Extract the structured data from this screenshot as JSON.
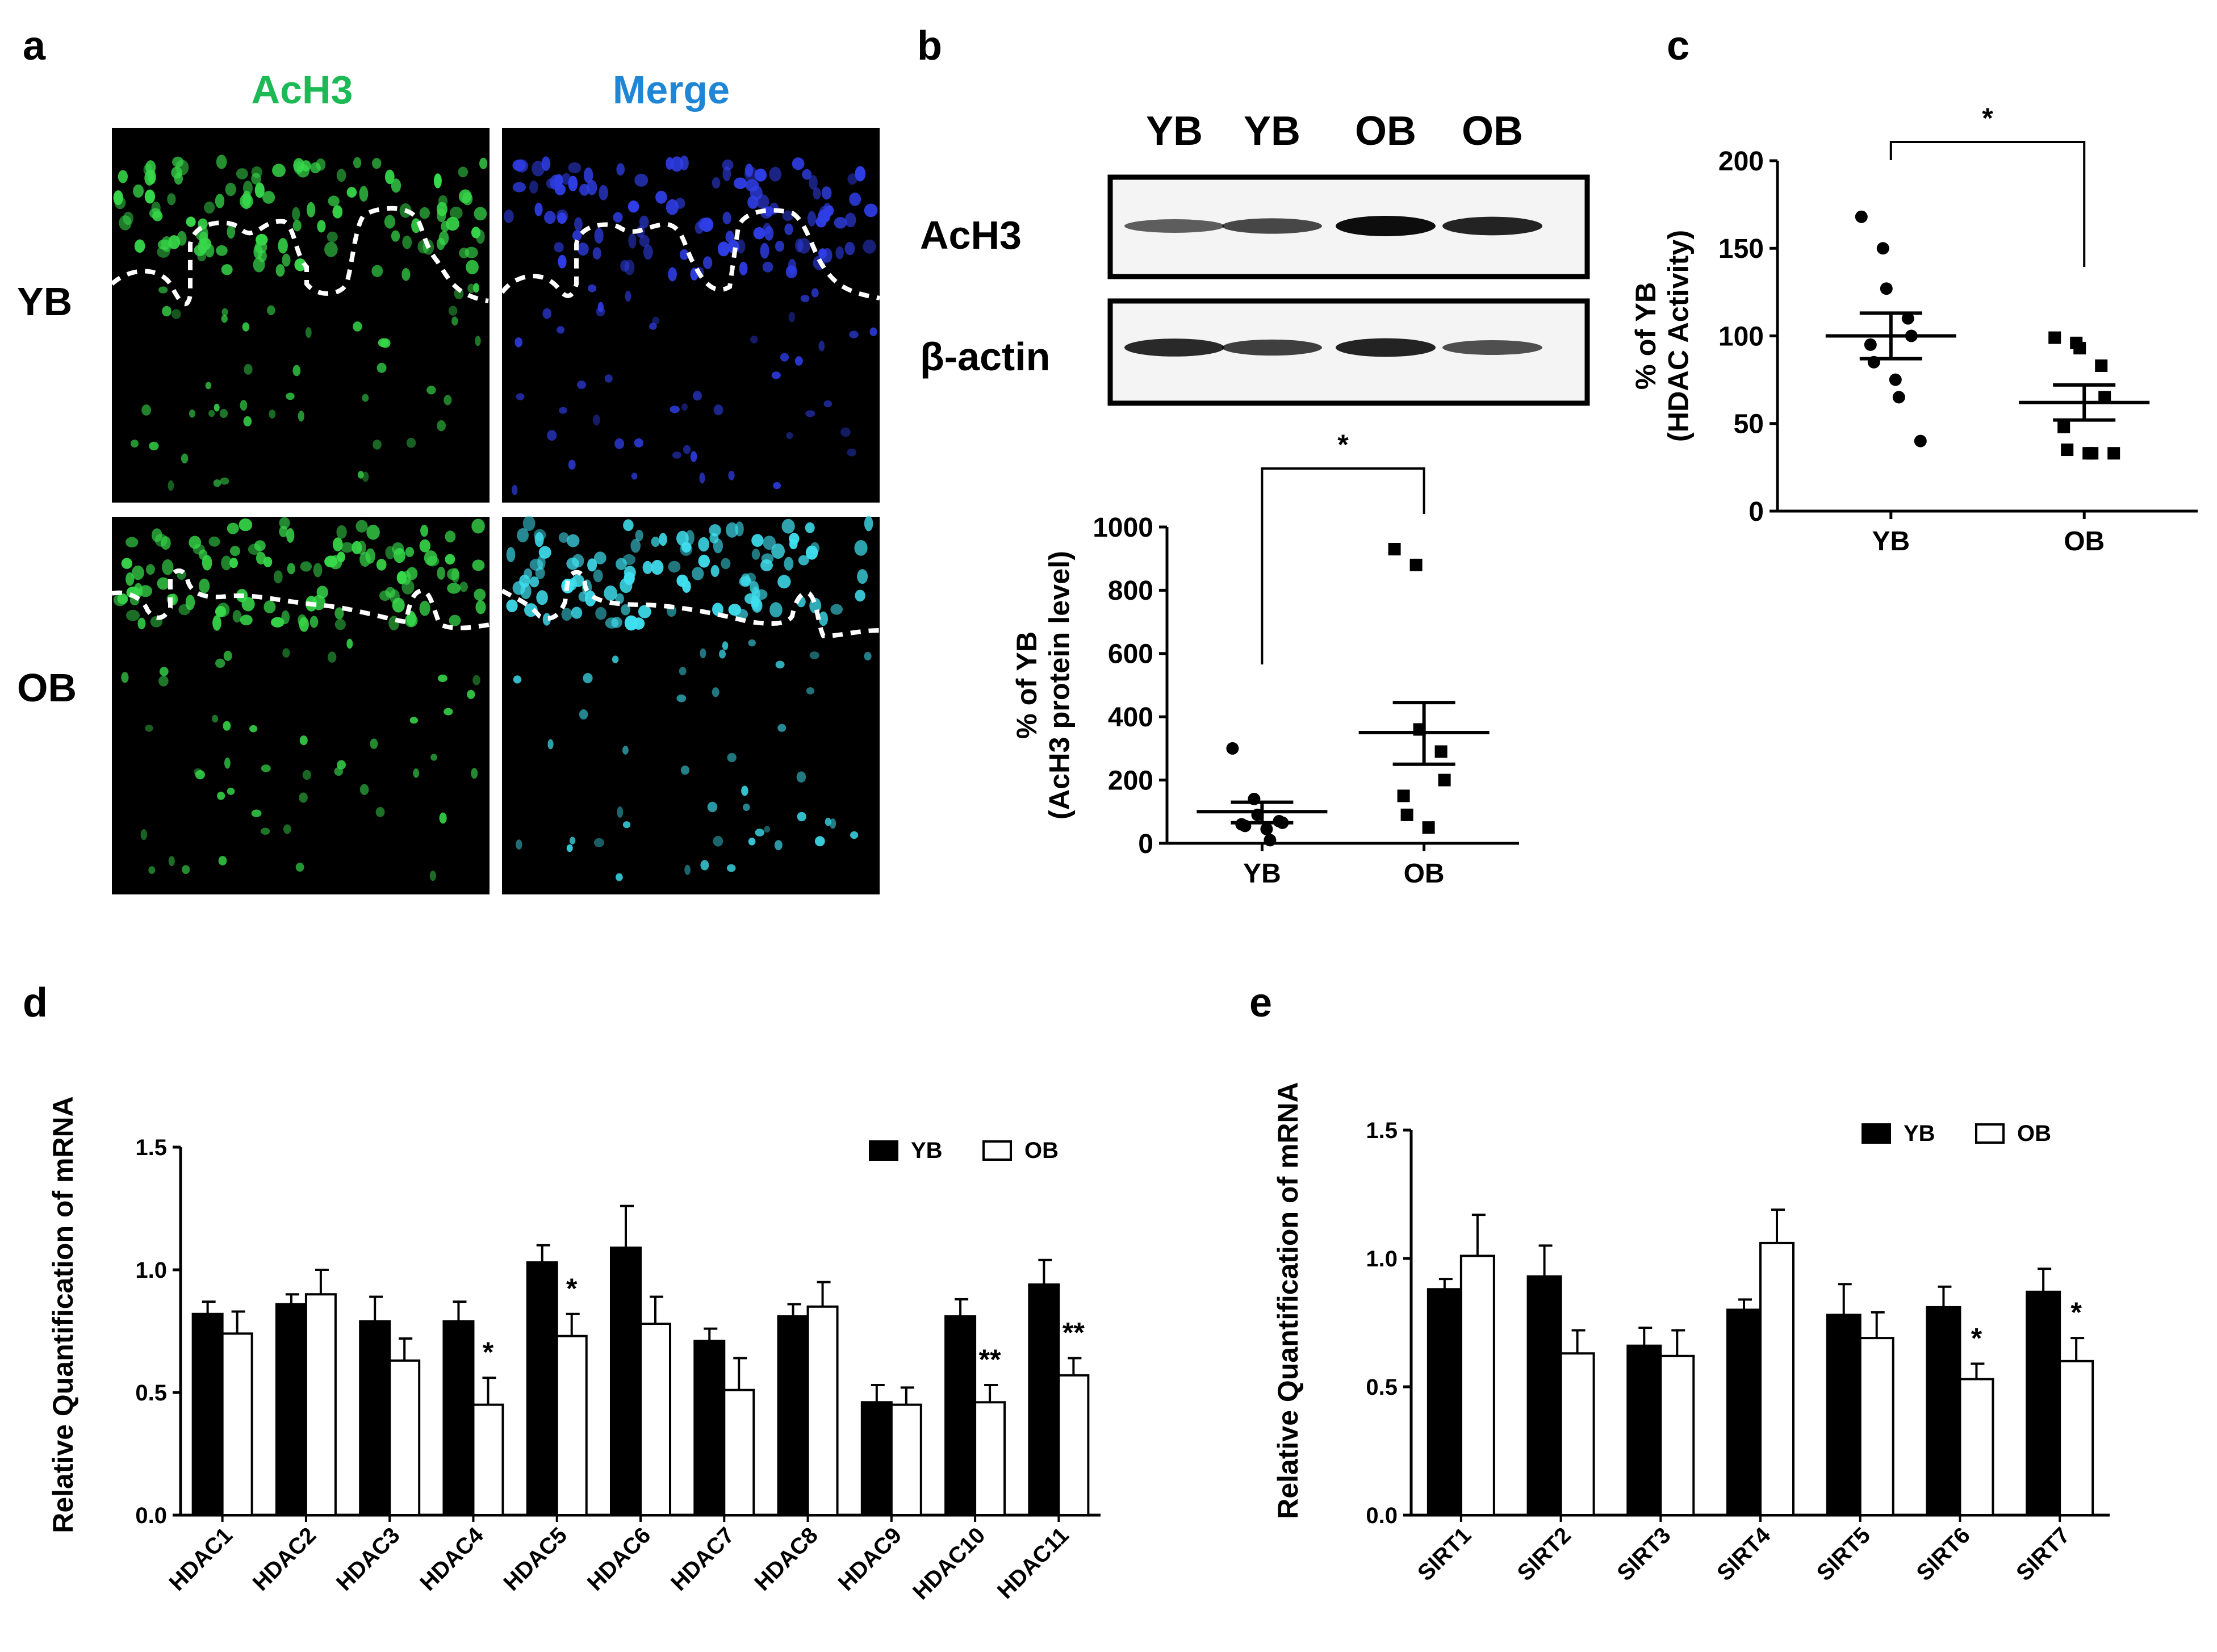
{
  "panel_letters": {
    "a": "a",
    "b": "b",
    "c": "c",
    "d": "d",
    "e": "e"
  },
  "colors": {
    "ach3_label": "#1db954",
    "merge_label": "#1f86d6",
    "nuclei_green": "#37d84a",
    "nuclei_blue": "#2f3ee6",
    "nuclei_cyan": "#3fe0f0",
    "bar_yb": "#000000",
    "bar_ob": "#ffffff"
  },
  "panel_a": {
    "col_labels": [
      "AcH3",
      "Merge"
    ],
    "row_labels": [
      "YB",
      "OB"
    ]
  },
  "panel_b_blot": {
    "lane_labels": [
      "YB",
      "YB",
      "OB",
      "OB"
    ],
    "row_labels": [
      "AcH3",
      "β-actin"
    ],
    "band_intensity": {
      "AcH3": [
        0.45,
        0.6,
        1.0,
        0.85
      ],
      "beta_actin": [
        0.8,
        0.65,
        0.85,
        0.55
      ]
    }
  },
  "chart_data": [
    {
      "id": "b",
      "type": "scatter",
      "categories": [
        "YB",
        "OB"
      ],
      "ylabel": "% of YB",
      "ylabel2": "(AcH3 protein level)",
      "ylim": [
        0,
        1000
      ],
      "yticks": [
        0,
        200,
        400,
        600,
        800,
        1000
      ],
      "series": [
        {
          "name": "YB",
          "marker": "circle",
          "points": [
            300,
            140,
            90,
            70,
            65,
            60,
            55,
            45,
            10
          ],
          "mean": 100,
          "sem_low": 65,
          "sem_high": 130
        },
        {
          "name": "OB",
          "marker": "square",
          "points": [
            930,
            880,
            360,
            290,
            200,
            150,
            90,
            50
          ],
          "mean": 350,
          "sem_low": 250,
          "sem_high": 445
        }
      ],
      "significance": "*"
    },
    {
      "id": "c",
      "type": "scatter",
      "categories": [
        "YB",
        "OB"
      ],
      "ylabel": "% of YB",
      "ylabel2": "(HDAC Activity)",
      "ylim": [
        0,
        200
      ],
      "yticks": [
        0,
        50,
        100,
        150,
        200
      ],
      "series": [
        {
          "name": "YB",
          "marker": "circle",
          "points": [
            168,
            150,
            127,
            110,
            100,
            95,
            85,
            75,
            65,
            40
          ],
          "mean": 100,
          "sem_low": 87,
          "sem_high": 113
        },
        {
          "name": "OB",
          "marker": "square",
          "points": [
            99,
            96,
            93,
            83,
            65,
            48,
            35,
            33,
            33,
            33
          ],
          "mean": 62,
          "sem_low": 52,
          "sem_high": 72
        }
      ],
      "significance": "*"
    },
    {
      "id": "d",
      "type": "bar",
      "categories": [
        "HDAC1",
        "HDAC2",
        "HDAC3",
        "HDAC4",
        "HDAC5",
        "HDAC6",
        "HDAC7",
        "HDAC8",
        "HDAC9",
        "HDAC10",
        "HDAC11"
      ],
      "ylabel": "Relative Quantification of mRNA",
      "ylim": [
        0,
        1.5
      ],
      "yticks": [
        "0.0",
        "0.5",
        "1.0",
        "1.5"
      ],
      "legend": [
        "YB",
        "OB"
      ],
      "legend_placement": "top-right",
      "series": [
        {
          "name": "YB",
          "values": [
            0.82,
            0.86,
            0.79,
            0.79,
            1.03,
            1.09,
            0.71,
            0.81,
            0.46,
            0.81,
            0.94
          ],
          "errors": [
            0.05,
            0.04,
            0.1,
            0.08,
            0.07,
            0.17,
            0.05,
            0.05,
            0.07,
            0.07,
            0.1
          ]
        },
        {
          "name": "OB",
          "values": [
            0.74,
            0.9,
            0.63,
            0.45,
            0.73,
            0.78,
            0.51,
            0.85,
            0.45,
            0.46,
            0.57
          ],
          "errors": [
            0.09,
            0.1,
            0.09,
            0.11,
            0.09,
            0.11,
            0.13,
            0.1,
            0.07,
            0.07,
            0.07
          ]
        }
      ],
      "significance": [
        "",
        "",
        "",
        "*",
        "*",
        "",
        "",
        "",
        "",
        "**",
        "**"
      ]
    },
    {
      "id": "e",
      "type": "bar",
      "categories": [
        "SIRT1",
        "SIRT2",
        "SIRT3",
        "SIRT4",
        "SIRT5",
        "SIRT6",
        "SIRT7"
      ],
      "ylabel": "Relative Quantification of mRNA",
      "ylim": [
        0,
        1.5
      ],
      "yticks": [
        "0.0",
        "0.5",
        "1.0",
        "1.5"
      ],
      "legend": [
        "YB",
        "OB"
      ],
      "legend_placement": "top-right",
      "series": [
        {
          "name": "YB",
          "values": [
            0.88,
            0.93,
            0.66,
            0.8,
            0.78,
            0.81,
            0.87
          ],
          "errors": [
            0.04,
            0.12,
            0.07,
            0.04,
            0.12,
            0.08,
            0.09
          ]
        },
        {
          "name": "OB",
          "values": [
            1.01,
            0.63,
            0.62,
            1.06,
            0.69,
            0.53,
            0.6
          ],
          "errors": [
            0.16,
            0.09,
            0.1,
            0.13,
            0.1,
            0.06,
            0.09
          ]
        }
      ],
      "significance": [
        "",
        "",
        "",
        "",
        "",
        "*",
        "*"
      ]
    }
  ]
}
